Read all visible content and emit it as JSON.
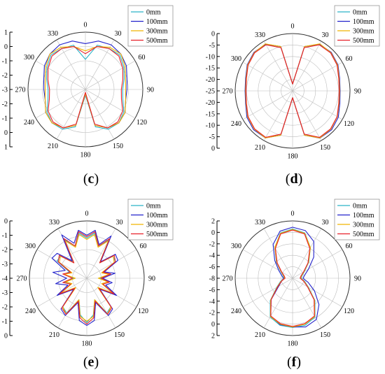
{
  "chart_data": [
    {
      "type": "polar-line",
      "panel": "c",
      "caption_letter": "c",
      "rlim": [
        -3,
        1
      ],
      "radial_ticks": [
        "1",
        "0",
        "-1",
        "-2",
        "-3",
        "-2",
        "-1",
        "0",
        "1"
      ],
      "angle_ticks": [
        "0",
        "30",
        "60",
        "90",
        "120",
        "150",
        "180",
        "210",
        "240",
        "270",
        "300",
        "330"
      ],
      "legend": [
        "0mm",
        "100mm",
        "300mm",
        "500mm"
      ],
      "colors": [
        "#2ab3c8",
        "#2222cc",
        "#f0b400",
        "#e8202a"
      ],
      "angles_deg": [
        0,
        15,
        30,
        45,
        60,
        75,
        90,
        105,
        120,
        135,
        150,
        165,
        180,
        195,
        210,
        225,
        240,
        255,
        270,
        285,
        300,
        315,
        330,
        345
      ],
      "series": [
        {
          "name": "0mm",
          "r": [
            -0.9,
            0.2,
            0.3,
            0.4,
            0.1,
            -0.2,
            -0.4,
            -0.3,
            0.1,
            0.3,
            0.2,
            -0.3,
            -2.6,
            -0.3,
            0.2,
            0.3,
            0.1,
            -0.3,
            -0.4,
            -0.2,
            0.1,
            0.4,
            0.3,
            0.2
          ]
        },
        {
          "name": "100mm",
          "r": [
            0.2,
            0.5,
            0.6,
            0.5,
            0.3,
            0.0,
            -0.1,
            -0.1,
            0.2,
            0.3,
            0.1,
            -0.4,
            -2.7,
            -0.4,
            0.1,
            0.3,
            0.2,
            -0.1,
            -0.1,
            0.0,
            0.3,
            0.5,
            0.6,
            0.5
          ]
        },
        {
          "name": "300mm",
          "r": [
            -0.3,
            0.1,
            0.4,
            0.5,
            0.2,
            -0.1,
            -0.2,
            -0.1,
            0.2,
            0.3,
            0.1,
            -0.4,
            -2.7,
            -0.4,
            0.1,
            0.3,
            0.2,
            -0.1,
            -0.2,
            -0.1,
            0.2,
            0.5,
            0.4,
            0.1
          ]
        },
        {
          "name": "500mm",
          "r": [
            -0.5,
            0.1,
            0.3,
            0.3,
            0.0,
            -0.3,
            -0.5,
            -0.4,
            0.0,
            0.2,
            0.1,
            -0.5,
            -2.8,
            -0.5,
            0.1,
            0.2,
            0.0,
            -0.4,
            -0.5,
            -0.3,
            0.0,
            0.3,
            0.3,
            0.1
          ]
        }
      ]
    },
    {
      "type": "polar-line",
      "panel": "d",
      "caption_letter": "d",
      "rlim": [
        -25,
        0
      ],
      "radial_ticks": [
        "0",
        "-5",
        "-10",
        "-15",
        "-20",
        "-25",
        "-20",
        "-15",
        "-10",
        "-5",
        "0"
      ],
      "angle_ticks": [
        "0",
        "30",
        "60",
        "90",
        "120",
        "150",
        "180",
        "210",
        "240",
        "270",
        "300",
        "330"
      ],
      "legend": [
        "0mm",
        "100mm",
        "300mm",
        "500mm"
      ],
      "colors": [
        "#2ab3c8",
        "#2222cc",
        "#f0b400",
        "#e8202a"
      ],
      "angles_deg": [
        0,
        15,
        30,
        45,
        60,
        75,
        90,
        105,
        120,
        135,
        150,
        165,
        180,
        195,
        210,
        225,
        240,
        255,
        270,
        285,
        300,
        315,
        330,
        345
      ],
      "series": [
        {
          "name": "0mm",
          "r": [
            -22,
            -5,
            -1.5,
            -1.5,
            -2.5,
            -4,
            -4.5,
            -4,
            -2.5,
            -1.5,
            -1.5,
            -5,
            -22,
            -5,
            -1.5,
            -1.5,
            -2.5,
            -4,
            -4.5,
            -4,
            -2.5,
            -1.5,
            -1.5,
            -5
          ]
        },
        {
          "name": "100mm",
          "r": [
            -22,
            -5,
            -1.5,
            -1.2,
            -2.2,
            -3.8,
            -4.3,
            -3.7,
            -2.0,
            -1.0,
            -1.2,
            -5,
            -22,
            -5,
            -1.3,
            -1.0,
            -2.0,
            -3.8,
            -4.3,
            -3.8,
            -2.2,
            -1.2,
            -1.5,
            -5
          ]
        },
        {
          "name": "300mm",
          "r": [
            -22,
            -5,
            -1.3,
            -1.4,
            -2.4,
            -4,
            -4.5,
            -4,
            -2.5,
            -1.4,
            -1.3,
            -5,
            -22,
            -5,
            -1.3,
            -1.4,
            -2.4,
            -4,
            -4.5,
            -4,
            -2.4,
            -1.4,
            -1.3,
            -5
          ]
        },
        {
          "name": "500mm",
          "r": [
            -22,
            -5.5,
            -1.8,
            -1.6,
            -2.6,
            -4.2,
            -4.7,
            -4.2,
            -2.6,
            -1.6,
            -1.6,
            -5.5,
            -22,
            -5.5,
            -1.6,
            -1.6,
            -2.6,
            -4.2,
            -4.7,
            -4.2,
            -2.6,
            -1.6,
            -1.8,
            -5.5
          ]
        }
      ]
    },
    {
      "type": "polar-line",
      "panel": "e",
      "caption_letter": "e",
      "rlim": [
        -4,
        0
      ],
      "radial_ticks": [
        "0",
        "-1",
        "-2",
        "-3",
        "-4",
        "-3",
        "-2",
        "-1",
        "0"
      ],
      "angle_ticks": [
        "0",
        "30",
        "60",
        "90",
        "120",
        "150",
        "180",
        "210",
        "240",
        "270",
        "300",
        "330"
      ],
      "legend": [
        "0mm",
        "100mm",
        "300mm",
        "500mm"
      ],
      "colors": [
        "#2ab3c8",
        "#2222cc",
        "#f0b400",
        "#e8202a"
      ],
      "angles_deg": [
        0,
        10,
        20,
        30,
        40,
        50,
        60,
        70,
        80,
        90,
        100,
        110,
        120,
        130,
        140,
        150,
        160,
        170,
        180,
        190,
        200,
        210,
        220,
        230,
        240,
        250,
        260,
        270,
        280,
        290,
        300,
        310,
        320,
        330,
        340,
        350
      ],
      "series": [
        {
          "name": "0mm",
          "r": [
            -1.2,
            -0.8,
            -1.6,
            -0.9,
            -2.6,
            -1.6,
            -1.7,
            -2.8,
            -2.3,
            -3.1,
            -2.5,
            -2.8,
            -1.8,
            -2.9,
            -1.4,
            -1.2,
            -2.4,
            -1.4,
            -0.9,
            -1.4,
            -2.4,
            -1.2,
            -1.4,
            -2.8,
            -1.8,
            -2.8,
            -2.4,
            -3.1,
            -2.4,
            -2.7,
            -1.6,
            -1.6,
            -2.5,
            -0.9,
            -1.6,
            -0.8
          ]
        },
        {
          "name": "100mm",
          "r": [
            -1.0,
            -0.6,
            -1.5,
            -0.6,
            -2.5,
            -1.4,
            -1.5,
            -2.7,
            -2.0,
            -2.9,
            -2.2,
            -2.6,
            -1.6,
            -2.8,
            -1.2,
            -1.0,
            -2.2,
            -1.0,
            -0.7,
            -1.0,
            -2.2,
            -1.0,
            -1.2,
            -2.8,
            -1.6,
            -2.6,
            -1.8,
            -2.6,
            -1.6,
            -2.4,
            -1.2,
            -1.3,
            -2.4,
            -0.5,
            -1.4,
            -0.6
          ]
        },
        {
          "name": "300mm",
          "r": [
            -1.3,
            -0.9,
            -1.7,
            -1.0,
            -2.6,
            -1.6,
            -1.8,
            -2.9,
            -2.4,
            -3.2,
            -2.5,
            -2.9,
            -1.9,
            -3.0,
            -1.4,
            -1.1,
            -2.4,
            -1.3,
            -1.0,
            -1.3,
            -2.4,
            -1.1,
            -1.4,
            -3.0,
            -1.9,
            -2.9,
            -2.5,
            -3.2,
            -2.4,
            -2.9,
            -1.8,
            -1.6,
            -2.6,
            -1.0,
            -1.7,
            -0.9
          ]
        },
        {
          "name": "500mm",
          "r": [
            -1.1,
            -0.7,
            -1.6,
            -0.8,
            -2.6,
            -1.5,
            -1.7,
            -2.8,
            -2.3,
            -3.0,
            -2.4,
            -2.8,
            -1.8,
            -2.9,
            -1.3,
            -1.1,
            -2.3,
            -1.2,
            -0.8,
            -1.2,
            -2.3,
            -1.1,
            -1.3,
            -2.9,
            -1.8,
            -2.8,
            -2.3,
            -3.0,
            -2.3,
            -2.8,
            -1.7,
            -1.5,
            -2.6,
            -0.8,
            -1.6,
            -0.7
          ]
        }
      ]
    },
    {
      "type": "polar-line",
      "panel": "f",
      "caption_letter": "f",
      "rlim": [
        -8,
        2
      ],
      "radial_ticks": [
        "2",
        "0",
        "-2",
        "-4",
        "-6",
        "-8",
        "-6",
        "-4",
        "-2",
        "0",
        "2"
      ],
      "angle_ticks": [
        "0",
        "30",
        "60",
        "90",
        "120",
        "150",
        "180",
        "210",
        "240",
        "270",
        "300",
        "330"
      ],
      "legend": [
        "0mm",
        "100mm",
        "300mm",
        "500mm"
      ],
      "colors": [
        "#2ab3c8",
        "#2222cc",
        "#f0b400",
        "#e8202a"
      ],
      "angles_deg": [
        0,
        15,
        30,
        45,
        60,
        75,
        90,
        105,
        120,
        135,
        150,
        165,
        180,
        195,
        210,
        225,
        240,
        255,
        270,
        285,
        300,
        315,
        330,
        345
      ],
      "series": [
        {
          "name": "0mm",
          "r": [
            0.6,
            0.2,
            -1.8,
            -4.0,
            -5.6,
            -6.3,
            -6.5,
            -5.8,
            -4.8,
            -2.5,
            -0.2,
            0.5,
            0.6,
            0.5,
            -0.2,
            -2.5,
            -4.8,
            -5.8,
            -6.5,
            -6.3,
            -5.6,
            -4.0,
            -1.8,
            0.2
          ]
        },
        {
          "name": "100mm",
          "r": [
            0.9,
            0.6,
            -0.6,
            -2.8,
            -4.8,
            -5.8,
            -6.2,
            -5.2,
            -3.6,
            -1.5,
            0.3,
            0.8,
            0.5,
            0.4,
            -0.4,
            -2.7,
            -5.2,
            -6.0,
            -6.4,
            -6.0,
            -5.2,
            -3.6,
            -1.2,
            0.5
          ]
        },
        {
          "name": "300mm",
          "r": [
            0.5,
            0.1,
            -1.8,
            -4.1,
            -5.7,
            -6.4,
            -6.6,
            -5.9,
            -4.9,
            -2.6,
            -0.3,
            0.3,
            0.5,
            0.3,
            -0.3,
            -2.6,
            -4.9,
            -5.9,
            -6.6,
            -6.4,
            -5.7,
            -4.1,
            -1.8,
            0.1
          ]
        },
        {
          "name": "500mm",
          "r": [
            0.4,
            0.0,
            -2.0,
            -4.2,
            -5.8,
            -6.5,
            -6.7,
            -6.0,
            -5.0,
            -2.7,
            -0.4,
            0.2,
            0.4,
            0.2,
            -0.4,
            -2.7,
            -5.0,
            -6.0,
            -6.7,
            -6.5,
            -5.8,
            -4.2,
            -2.0,
            0.0
          ]
        }
      ]
    }
  ]
}
